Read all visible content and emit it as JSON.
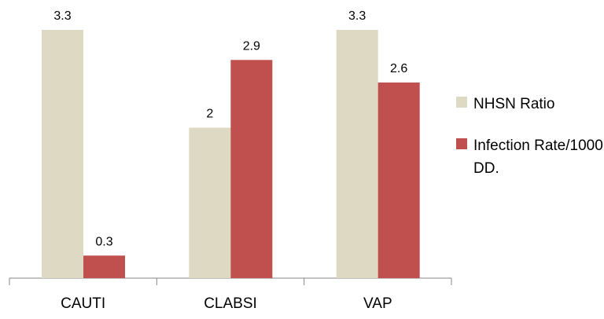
{
  "chart_data": {
    "type": "bar",
    "categories": [
      "CAUTI",
      "CLABSI",
      "VAP"
    ],
    "series": [
      {
        "name": "NHSN Ratio",
        "values": [
          3.3,
          2,
          3.3
        ],
        "color": "#DDD9C3"
      },
      {
        "name": "Infection Rate/1000 DD.",
        "values": [
          0.3,
          2.9,
          2.6
        ],
        "color": "#C0504D"
      }
    ],
    "data_labels": [
      [
        "3.3",
        "2",
        "3.3"
      ],
      [
        "0.3",
        "2.9",
        "2.6"
      ]
    ],
    "ylim": [
      0,
      3.3
    ],
    "grid": false,
    "legend_position": "right",
    "title": "",
    "xlabel": "",
    "ylabel": ""
  }
}
